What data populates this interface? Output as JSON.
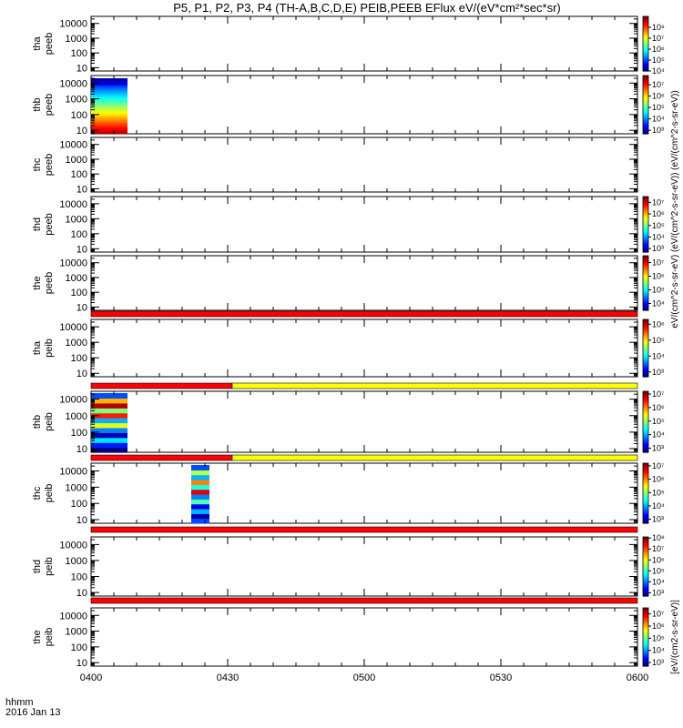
{
  "title": "P5, P1, P2, P3, P4 (TH-A,B,C,D,E) PEIB,PEEB EFlux eV/(eV*cm²*sec*sr)",
  "footer": {
    "line1": "hhmm",
    "line2": "2016 Jan 13"
  },
  "colorbar_unit_top": "eV/(cm^2-s-sr-eV) (eV/(cm^2-s-sr-eV)) (eV/(cm^2-s-sr-eV))",
  "colorbar_unit_bottom": "[eV/(cm2-s-sr-eV)]",
  "chart_data": {
    "type": "heatmap",
    "x_axis": {
      "range": [
        "0400",
        "0600"
      ],
      "ticks": [
        "0400",
        "0430",
        "0500",
        "0530",
        "0600"
      ]
    },
    "y_axis": {
      "scale": "log",
      "range": [
        6,
        30000
      ],
      "ticks": [
        "10",
        "100",
        "1000",
        "10000"
      ]
    },
    "panels": [
      {
        "name": "tha peeb",
        "label1": "tha",
        "label2": "peeb",
        "cbar_ticks": [
          "10⁴",
          "10⁵",
          "10⁶",
          "10⁷",
          "10⁸"
        ],
        "cbar_range": [
          3,
          8
        ],
        "blocks": [],
        "status_bar": []
      },
      {
        "name": "thb peeb",
        "label1": "thb",
        "label2": "peeb",
        "cbar_ticks": [
          "10³",
          "10⁴",
          "10⁵",
          "10⁶",
          "10⁷"
        ],
        "cbar_range": [
          2.7,
          7.8
        ],
        "blocks": [
          {
            "t0": "0400",
            "t1": "0408",
            "pattern": "peeb"
          }
        ],
        "status_bar": []
      },
      {
        "name": "thc peeb",
        "label1": "thc",
        "label2": "peeb",
        "cbar_ticks": [],
        "cbar_range": [],
        "blocks": [],
        "status_bar": []
      },
      {
        "name": "thd peeb",
        "label1": "thd",
        "label2": "peeb",
        "cbar_ticks": [
          "10³",
          "10⁴",
          "10⁵",
          "10⁶",
          "10⁷"
        ],
        "cbar_range": [
          2.7,
          7.5
        ],
        "blocks": [],
        "status_bar": []
      },
      {
        "name": "the peeb",
        "label1": "the",
        "label2": "peeb",
        "cbar_ticks": [
          "10⁴",
          "10⁵",
          "10⁶",
          "10⁷"
        ],
        "cbar_range": [
          3.5,
          7.5
        ],
        "blocks": [],
        "status_bar": [
          {
            "t0": "0400",
            "t1": "0600",
            "color": "#ff0000"
          }
        ]
      },
      {
        "name": "tha peib",
        "label1": "tha",
        "label2": "peib",
        "cbar_ticks": [
          "10³",
          "10⁴",
          "10⁵",
          "10⁶"
        ],
        "cbar_range": [
          2.7,
          6.3
        ],
        "blocks": [],
        "status_bar": [
          {
            "t0": "0400",
            "t1": "0431",
            "color": "#ff0000"
          },
          {
            "t0": "0431",
            "t1": "0600",
            "color": "#ffff00"
          }
        ]
      },
      {
        "name": "thb peib",
        "label1": "thb",
        "label2": "peib",
        "cbar_ticks": [
          "10³",
          "10⁴",
          "10⁵",
          "10⁶",
          "10⁷"
        ],
        "cbar_range": [
          2.7,
          7.2
        ],
        "blocks": [
          {
            "t0": "0400",
            "t1": "0408",
            "pattern": "peib_b"
          }
        ],
        "status_bar": [
          {
            "t0": "0400",
            "t1": "0431",
            "color": "#ff0000"
          },
          {
            "t0": "0431",
            "t1": "0600",
            "color": "#ffff00"
          }
        ]
      },
      {
        "name": "thc peib",
        "label1": "thc",
        "label2": "peib",
        "cbar_ticks": [
          "10³",
          "10⁴",
          "10⁵",
          "10⁶",
          "10⁷"
        ],
        "cbar_range": [
          2.7,
          7.2
        ],
        "blocks": [
          {
            "t0": "0422",
            "t1": "0426",
            "pattern": "peib_c"
          }
        ],
        "status_bar": [
          {
            "t0": "0400",
            "t1": "0600",
            "color": "#ff0000"
          }
        ]
      },
      {
        "name": "thd peib",
        "label1": "thd",
        "label2": "peib",
        "cbar_ticks": [
          "10³",
          "10⁴",
          "10⁵",
          "10⁶",
          "10⁷",
          "10⁸"
        ],
        "cbar_range": [
          2.7,
          8.1
        ],
        "blocks": [],
        "status_bar": [
          {
            "t0": "0400",
            "t1": "0600",
            "color": "#ff0000"
          }
        ]
      },
      {
        "name": "the peib",
        "label1": "the",
        "label2": "peib",
        "cbar_ticks": [
          "10³",
          "10⁴",
          "10⁵",
          "10⁶",
          "10⁷"
        ],
        "cbar_range": [
          2.7,
          7.5
        ],
        "blocks": [],
        "status_bar": []
      }
    ]
  }
}
